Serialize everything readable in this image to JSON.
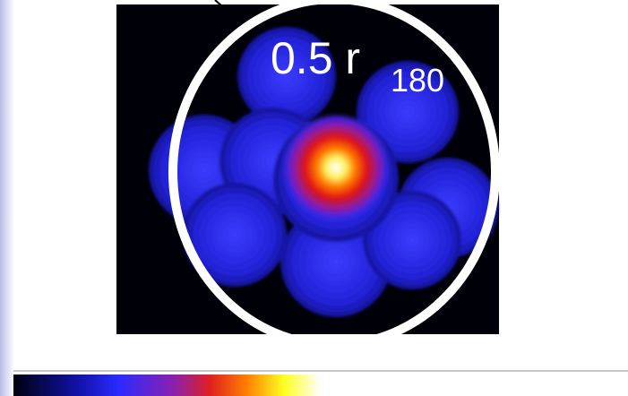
{
  "label": {
    "main": "0.5 r",
    "subscript": "180"
  }
}
